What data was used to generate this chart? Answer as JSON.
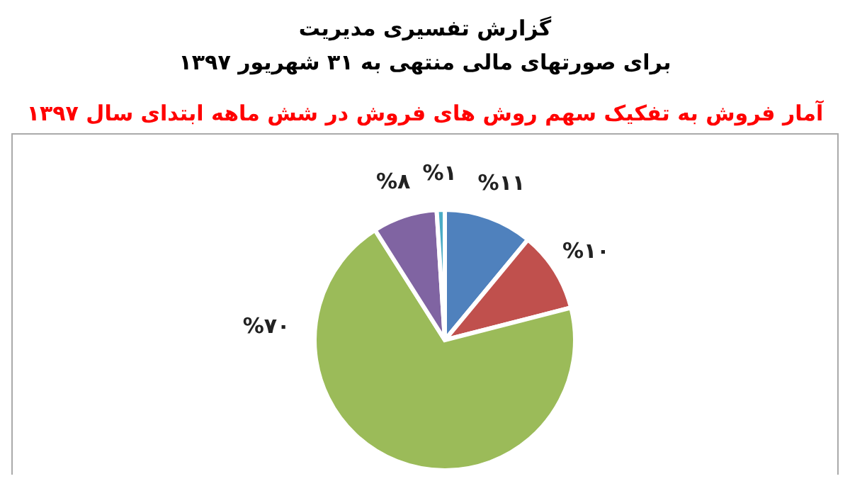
{
  "chart_data": {
    "type": "pie",
    "title": "آمار فروش به تفکیک سهم روش های فروش در شش ماهه ابتدای سال ۱۳۹۷",
    "annotations": [
      "گزارش تفسیری مدیریت",
      "برای صورتهای مالی منتهی به ۳۱ شهریور ۱۳۹۷"
    ],
    "categories": [
      null,
      null,
      null,
      null,
      null
    ],
    "values": [
      11,
      10,
      70,
      8,
      1
    ],
    "value_labels": [
      "%۱۱",
      "%۱۰",
      "%۷۰",
      "%۸",
      "%۱"
    ],
    "colors": [
      "#4f81bd",
      "#c0504d",
      "#9bbb59",
      "#8064a2",
      "#4bacc6"
    ],
    "legend": false
  }
}
